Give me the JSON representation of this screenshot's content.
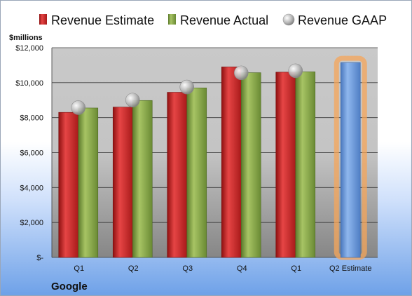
{
  "chart_data": {
    "type": "bar",
    "unit_label": "$millions",
    "company": "Google",
    "categories": [
      "Q1",
      "Q2",
      "Q3",
      "Q4",
      "Q1",
      "Q2 Estimate"
    ],
    "ylim": [
      0,
      12000
    ],
    "y_ticks": [
      {
        "value": 0,
        "label": "$-"
      },
      {
        "value": 2000,
        "label": "$2,000"
      },
      {
        "value": 4000,
        "label": "$4,000"
      },
      {
        "value": 6000,
        "label": "$6,000"
      },
      {
        "value": 8000,
        "label": "$8,000"
      },
      {
        "value": 10000,
        "label": "$10,000"
      },
      {
        "value": 12000,
        "label": "$12,000"
      }
    ],
    "grid": true,
    "legend_position": "top",
    "series": [
      {
        "name": "Revenue Estimate",
        "kind": "bar",
        "color": "#d42a2a",
        "values": [
          8300,
          8600,
          9450,
          10900,
          10600,
          null
        ]
      },
      {
        "name": "Revenue Actual",
        "kind": "bar",
        "color": "#8fb04c",
        "values": [
          8550,
          8980,
          9700,
          10570,
          10620,
          null
        ]
      },
      {
        "name": "Revenue GAAP",
        "kind": "marker",
        "color": "#c8c8c8",
        "values": [
          8570,
          9000,
          9750,
          10560,
          10680,
          null
        ]
      },
      {
        "name": "",
        "kind": "bar",
        "color": "#6d9ee0",
        "highlight": "#f5a55a",
        "values": [
          null,
          null,
          null,
          null,
          null,
          11150
        ]
      }
    ]
  }
}
